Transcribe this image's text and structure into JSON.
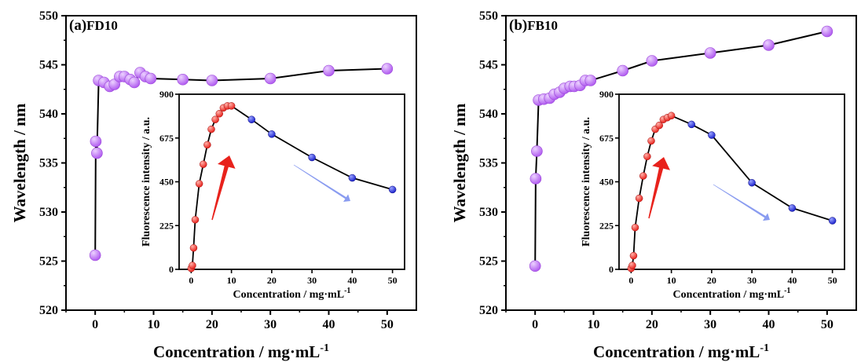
{
  "colors": {
    "main_marker": "#b15cf0",
    "inset_rise": "#e8221c",
    "inset_fall": "#1c22cc",
    "up_arrow": "#e8221c",
    "down_arrow": "#8a9cf0",
    "line": "#000000"
  },
  "chart_data": [
    {
      "type": "line",
      "panel_label": "(a)",
      "panel_name": "FD10",
      "xlabel": "Concentration / mg·mL",
      "xlabel_sup": "-1",
      "ylabel": "Wavelength / nm",
      "xlim": [
        -5,
        55
      ],
      "ylim": [
        520,
        550
      ],
      "xticks": [
        0,
        10,
        20,
        30,
        40,
        50
      ],
      "yticks": [
        520,
        525,
        530,
        535,
        540,
        545,
        550
      ],
      "series": [
        {
          "x": [
            0,
            0.1,
            0.3,
            0.6,
            1.5,
            2.5,
            3.3,
            4.2,
            5.0,
            6.0,
            6.7,
            7.7,
            8.6,
            9.5,
            15,
            20,
            30,
            40,
            50
          ],
          "y": [
            525.6,
            537.2,
            536.0,
            543.4,
            543.2,
            542.8,
            543.0,
            543.8,
            543.8,
            543.5,
            543.2,
            544.2,
            543.8,
            543.6,
            543.5,
            543.4,
            543.6,
            544.4,
            544.6
          ]
        }
      ],
      "inset": {
        "type": "line",
        "xlabel": "Concentration / mg·mL",
        "xlabel_sup": "-1",
        "ylabel": "Fluorescence intensity / a.u.",
        "xlim": [
          -3,
          53
        ],
        "ylim": [
          0,
          900
        ],
        "xticks": [
          0,
          10,
          20,
          30,
          40,
          50
        ],
        "yticks": [
          0,
          225,
          450,
          675,
          900
        ],
        "rise": {
          "x": [
            0,
            0.3,
            0.6,
            1,
            2,
            3,
            4,
            5,
            6,
            7,
            8,
            9,
            10
          ],
          "y": [
            5,
            20,
            110,
            255,
            440,
            540,
            640,
            720,
            770,
            800,
            830,
            840,
            840
          ]
        },
        "fall": {
          "x": [
            15,
            20,
            30,
            40,
            50
          ],
          "y": [
            770,
            695,
            575,
            470,
            410
          ]
        }
      }
    },
    {
      "type": "line",
      "panel_label": "(b)",
      "panel_name": "FB10",
      "xlabel": "Concentration / mg·mL",
      "xlabel_sup": "-1",
      "ylabel": "Wavelength / nm",
      "xlim": [
        -5,
        55
      ],
      "ylim": [
        520,
        550
      ],
      "xticks": [
        0,
        10,
        20,
        30,
        40,
        50
      ],
      "yticks": [
        520,
        525,
        530,
        535,
        540,
        545,
        550
      ],
      "series": [
        {
          "x": [
            0,
            0.1,
            0.3,
            0.6,
            1.5,
            2.5,
            3.3,
            4.2,
            5.0,
            6.0,
            6.7,
            7.7,
            8.6,
            9.5,
            15,
            20,
            30,
            40,
            50
          ],
          "y": [
            524.5,
            533.4,
            536.2,
            541.4,
            541.5,
            541.6,
            542.0,
            542.2,
            542.6,
            542.8,
            542.8,
            542.9,
            543.4,
            543.4,
            544.4,
            545.4,
            546.2,
            547.0,
            548.4
          ]
        }
      ],
      "inset": {
        "type": "line",
        "xlabel": "Concentration / mg·mL",
        "xlabel_sup": "-1",
        "ylabel": "Fluorescence intensity / a.u.",
        "xlim": [
          -3,
          53
        ],
        "ylim": [
          0,
          900
        ],
        "xticks": [
          0,
          10,
          20,
          30,
          40,
          50
        ],
        "yticks": [
          0,
          225,
          450,
          675,
          900
        ],
        "rise": {
          "x": [
            0,
            0.3,
            0.6,
            1,
            2,
            3,
            4,
            5,
            6,
            7,
            8,
            9,
            10
          ],
          "y": [
            5,
            20,
            70,
            215,
            365,
            480,
            580,
            660,
            720,
            740,
            770,
            780,
            790
          ]
        },
        "fall": {
          "x": [
            15,
            20,
            30,
            40,
            50
          ],
          "y": [
            745,
            690,
            445,
            315,
            250
          ]
        }
      }
    }
  ]
}
